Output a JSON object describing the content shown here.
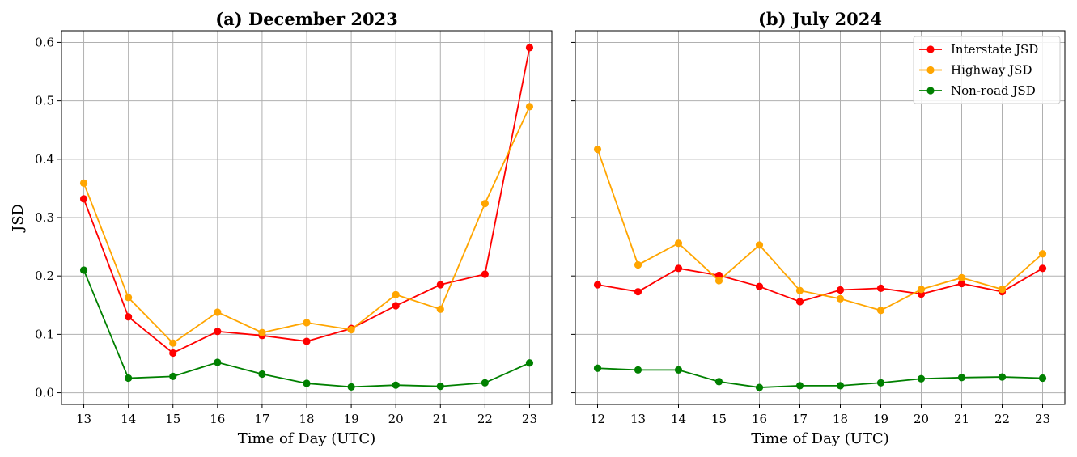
{
  "chart_data": [
    {
      "type": "line",
      "title": "(a) December 2023",
      "xlabel": "Time of Day (UTC)",
      "ylabel": "JSD",
      "x": [
        13,
        14,
        15,
        16,
        17,
        18,
        19,
        20,
        21,
        22,
        23
      ],
      "xlim": [
        12.5,
        23.5
      ],
      "ylim": [
        -0.02,
        0.62
      ],
      "yticks": [
        0.0,
        0.1,
        0.2,
        0.3,
        0.4,
        0.5,
        0.6
      ],
      "ytick_labels": [
        "0.0",
        "0.1",
        "0.2",
        "0.3",
        "0.4",
        "0.5",
        "0.6"
      ],
      "grid": true,
      "series": [
        {
          "name": "Interstate JSD",
          "color": "#ff0000",
          "values": [
            0.332,
            0.13,
            0.068,
            0.105,
            0.098,
            0.088,
            0.11,
            0.149,
            0.185,
            0.203,
            0.591
          ]
        },
        {
          "name": "Highway JSD",
          "color": "#ffa500",
          "values": [
            0.359,
            0.163,
            0.085,
            0.138,
            0.103,
            0.12,
            0.108,
            0.168,
            0.143,
            0.324,
            0.49
          ]
        },
        {
          "name": "Non-road JSD",
          "color": "#008000",
          "values": [
            0.21,
            0.025,
            0.028,
            0.052,
            0.032,
            0.016,
            0.01,
            0.013,
            0.011,
            0.017,
            0.051
          ]
        }
      ]
    },
    {
      "type": "line",
      "title": "(b) July 2024",
      "xlabel": "Time of Day (UTC)",
      "ylabel": "",
      "x": [
        12,
        13,
        14,
        15,
        16,
        17,
        18,
        19,
        20,
        21,
        22,
        23
      ],
      "xlim": [
        11.45,
        23.55
      ],
      "ylim": [
        -0.02,
        0.62
      ],
      "yticks": [
        0.0,
        0.1,
        0.2,
        0.3,
        0.4,
        0.5,
        0.6
      ],
      "grid": true,
      "legend_position": "top-right",
      "series": [
        {
          "name": "Interstate JSD",
          "color": "#ff0000",
          "values": [
            0.185,
            0.173,
            0.213,
            0.201,
            0.182,
            0.156,
            0.176,
            0.179,
            0.169,
            0.187,
            0.173,
            0.213
          ]
        },
        {
          "name": "Highway JSD",
          "color": "#ffa500",
          "values": [
            0.417,
            0.219,
            0.256,
            0.192,
            0.253,
            0.175,
            0.161,
            0.141,
            0.177,
            0.197,
            0.177,
            0.238
          ]
        },
        {
          "name": "Non-road JSD",
          "color": "#008000",
          "values": [
            0.042,
            0.039,
            0.039,
            0.019,
            0.009,
            0.012,
            0.012,
            0.017,
            0.024,
            0.026,
            0.027,
            0.025
          ]
        }
      ]
    }
  ]
}
